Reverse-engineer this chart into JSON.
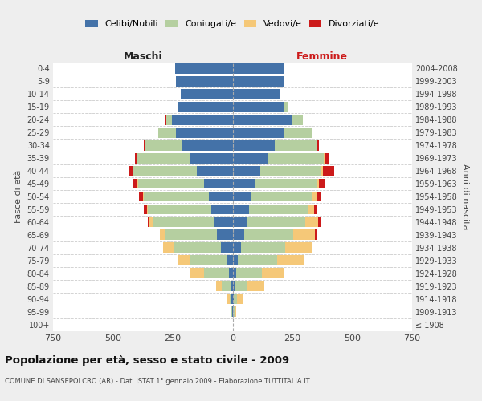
{
  "age_groups": [
    "100+",
    "95-99",
    "90-94",
    "85-89",
    "80-84",
    "75-79",
    "70-74",
    "65-69",
    "60-64",
    "55-59",
    "50-54",
    "45-49",
    "40-44",
    "35-39",
    "30-34",
    "25-29",
    "20-24",
    "15-19",
    "10-14",
    "5-9",
    "0-4"
  ],
  "birth_years": [
    "≤ 1908",
    "1909-1913",
    "1914-1918",
    "1919-1923",
    "1924-1928",
    "1929-1933",
    "1934-1938",
    "1939-1943",
    "1944-1948",
    "1949-1953",
    "1954-1958",
    "1959-1963",
    "1964-1968",
    "1969-1973",
    "1974-1978",
    "1979-1983",
    "1984-1988",
    "1989-1993",
    "1994-1998",
    "1999-2003",
    "2004-2008"
  ],
  "male_celibi": [
    0,
    2,
    5,
    10,
    15,
    25,
    50,
    65,
    80,
    90,
    100,
    120,
    150,
    175,
    210,
    235,
    255,
    225,
    215,
    235,
    240
  ],
  "male_coniugati": [
    0,
    3,
    8,
    35,
    105,
    150,
    195,
    215,
    255,
    265,
    270,
    275,
    265,
    225,
    155,
    75,
    22,
    4,
    1,
    0,
    0
  ],
  "male_vedovi": [
    0,
    2,
    8,
    25,
    55,
    55,
    45,
    25,
    12,
    4,
    4,
    4,
    4,
    1,
    1,
    1,
    1,
    0,
    0,
    0,
    0
  ],
  "male_divorziati": [
    0,
    0,
    0,
    0,
    0,
    0,
    0,
    0,
    8,
    12,
    16,
    16,
    16,
    8,
    4,
    1,
    1,
    0,
    0,
    0,
    0
  ],
  "female_nubili": [
    0,
    3,
    5,
    10,
    15,
    22,
    35,
    50,
    60,
    70,
    80,
    95,
    115,
    145,
    175,
    215,
    245,
    215,
    195,
    215,
    215
  ],
  "female_coniugate": [
    0,
    4,
    12,
    52,
    108,
    165,
    185,
    205,
    245,
    245,
    255,
    255,
    255,
    235,
    175,
    115,
    48,
    15,
    4,
    0,
    0
  ],
  "female_vedove": [
    0,
    8,
    25,
    70,
    92,
    110,
    110,
    90,
    52,
    25,
    16,
    12,
    8,
    4,
    4,
    1,
    1,
    0,
    0,
    0,
    0
  ],
  "female_divorziate": [
    0,
    0,
    0,
    0,
    0,
    4,
    4,
    4,
    12,
    12,
    20,
    25,
    45,
    16,
    8,
    4,
    1,
    0,
    0,
    0,
    0
  ],
  "color_celibi": "#4472a8",
  "color_coniugati": "#b5cfa0",
  "color_vedovi": "#f5c878",
  "color_divorziati": "#cc1a1a",
  "legend_labels": [
    "Celibi/Nubili",
    "Coniugati/e",
    "Vedovi/e",
    "Divorziati/e"
  ],
  "title": "Popolazione per età, sesso e stato civile - 2009",
  "subtitle": "COMUNE DI SANSEPOLCRO (AR) - Dati ISTAT 1° gennaio 2009 - Elaborazione TUTTITALIA.IT",
  "label_maschi": "Maschi",
  "label_femmine": "Femmine",
  "label_fasce": "Fasce di età",
  "label_anni": "Anni di nascita",
  "xlim": 750,
  "bg_color": "#eeeeee",
  "plot_bg": "#ffffff",
  "grid_color": "#cccccc"
}
